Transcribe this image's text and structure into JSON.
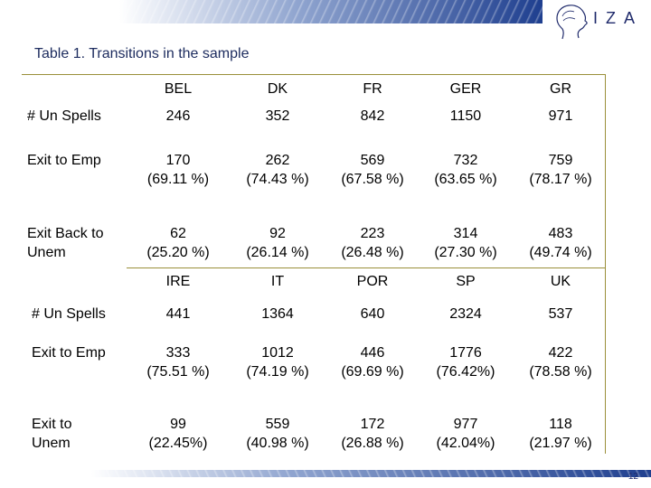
{
  "header": {
    "logo_text": "IZA"
  },
  "title": "Table 1. Transitions in the sample",
  "table1": {
    "columns": [
      "BEL",
      "DK",
      "FR",
      "GER",
      "GR"
    ],
    "rows": [
      {
        "label": "# Un Spells",
        "cells": [
          "246",
          "352",
          "842",
          "1150",
          "971"
        ]
      },
      {
        "label": "Exit to Emp",
        "cells": [
          "170\n(69.11 %)",
          "262\n(74.43 %)",
          "569\n(67.58 %)",
          "732\n(63.65 %)",
          "759\n(78.17 %)"
        ]
      },
      {
        "label": "Exit Back to\nUnem",
        "cells": [
          "62\n(25.20 %)",
          "92\n(26.14 %)",
          "223\n(26.48 %)",
          "314\n(27.30 %)",
          "483\n(49.74 %)"
        ]
      }
    ]
  },
  "table2": {
    "columns": [
      "IRE",
      "IT",
      "POR",
      "SP",
      "UK"
    ],
    "rows": [
      {
        "label": "# Un Spells",
        "cells": [
          "441",
          "1364",
          "640",
          "2324",
          "537"
        ]
      },
      {
        "label": "Exit to Emp",
        "cells": [
          "333\n(75.51 %)",
          "1012\n(74.19 %)",
          "446\n(69.69 %)",
          "1776\n(76.42%)",
          "422\n(78.58 %)"
        ]
      },
      {
        "label": "Exit to\nUnem",
        "cells": [
          "99\n(22.45%)",
          "559\n(40.98 %)",
          "172\n(26.88 %)",
          "977\n(42.04%)",
          "118\n(21.97 %)"
        ]
      }
    ]
  },
  "footer": {
    "page_number": "12"
  }
}
